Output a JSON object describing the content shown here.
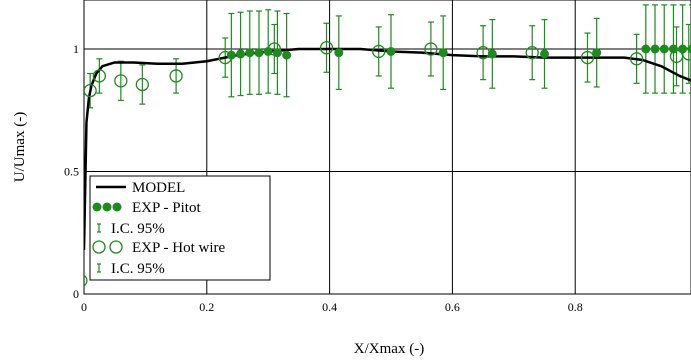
{
  "chart_data": {
    "type": "scatter",
    "xlabel": "X/Xmax (-)",
    "ylabel": "U/Umax (-)",
    "xlim": [
      0,
      1
    ],
    "ylim": [
      0,
      1.2
    ],
    "x_ticks": [
      0,
      0.2,
      0.4,
      0.6,
      0.8
    ],
    "x_tick_labels": [
      "0",
      "0.2",
      "0.4",
      "0.6",
      "0.8"
    ],
    "y_ticks": [
      0,
      0.5,
      1
    ],
    "y_tick_labels": [
      "0",
      "0.5",
      "1"
    ],
    "grid": true,
    "legend_position": "bottom-left",
    "colors": {
      "model": "#000000",
      "experiment": "#1f8a1f"
    },
    "series": [
      {
        "name": "MODEL",
        "type": "line",
        "x": [
          0,
          0.004,
          0.008,
          0.012,
          0.02,
          0.03,
          0.05,
          0.08,
          0.12,
          0.16,
          0.2,
          0.25,
          0.3,
          0.35,
          0.4,
          0.45,
          0.5,
          0.55,
          0.6,
          0.65,
          0.7,
          0.75,
          0.8,
          0.85,
          0.88,
          0.91,
          0.94,
          0.97,
          1.0
        ],
        "y": [
          0.18,
          0.7,
          0.8,
          0.85,
          0.9,
          0.93,
          0.945,
          0.945,
          0.94,
          0.94,
          0.95,
          0.975,
          0.99,
          1.0,
          1.0,
          1.0,
          0.99,
          0.985,
          0.975,
          0.97,
          0.97,
          0.965,
          0.965,
          0.965,
          0.965,
          0.955,
          0.93,
          0.89,
          0.86
        ]
      },
      {
        "name": "EXP - Pitot",
        "type": "scatter",
        "marker": "filled-circle",
        "x": [
          0.24,
          0.255,
          0.27,
          0.285,
          0.3,
          0.315,
          0.33,
          0.415,
          0.5,
          0.585,
          0.665,
          0.75,
          0.835,
          0.915,
          0.93,
          0.945,
          0.96,
          0.975,
          0.99
        ],
        "y": [
          0.975,
          0.98,
          0.985,
          0.985,
          0.99,
          0.985,
          0.975,
          0.985,
          0.99,
          0.985,
          0.98,
          0.98,
          0.985,
          1.0,
          1.0,
          1.0,
          1.0,
          1.0,
          1.0
        ],
        "err": [
          0.17,
          0.17,
          0.17,
          0.17,
          0.17,
          0.17,
          0.17,
          0.15,
          0.15,
          0.15,
          0.14,
          0.14,
          0.14,
          0.18,
          0.18,
          0.18,
          0.18,
          0.18,
          0.18
        ]
      },
      {
        "name": "I.C. 95%",
        "type": "errorbar"
      },
      {
        "name": "EXP - Hot wire",
        "type": "scatter",
        "marker": "open-circle",
        "x": [
          -0.005,
          0.01,
          0.025,
          0.06,
          0.095,
          0.15,
          0.23,
          0.31,
          0.395,
          0.48,
          0.565,
          0.65,
          0.73,
          0.82,
          0.9,
          0.965,
          0.985
        ],
        "y": [
          0.055,
          0.83,
          0.89,
          0.87,
          0.855,
          0.89,
          0.965,
          1.0,
          1.005,
          0.99,
          1.0,
          0.985,
          0.985,
          0.965,
          0.96,
          0.97,
          0.98
        ],
        "err": [
          0.0,
          0.07,
          0.07,
          0.08,
          0.08,
          0.07,
          0.08,
          0.1,
          0.1,
          0.1,
          0.11,
          0.11,
          0.11,
          0.1,
          0.1,
          0.12,
          0.12
        ]
      },
      {
        "name": "I.C. 95%",
        "type": "errorbar"
      }
    ]
  }
}
